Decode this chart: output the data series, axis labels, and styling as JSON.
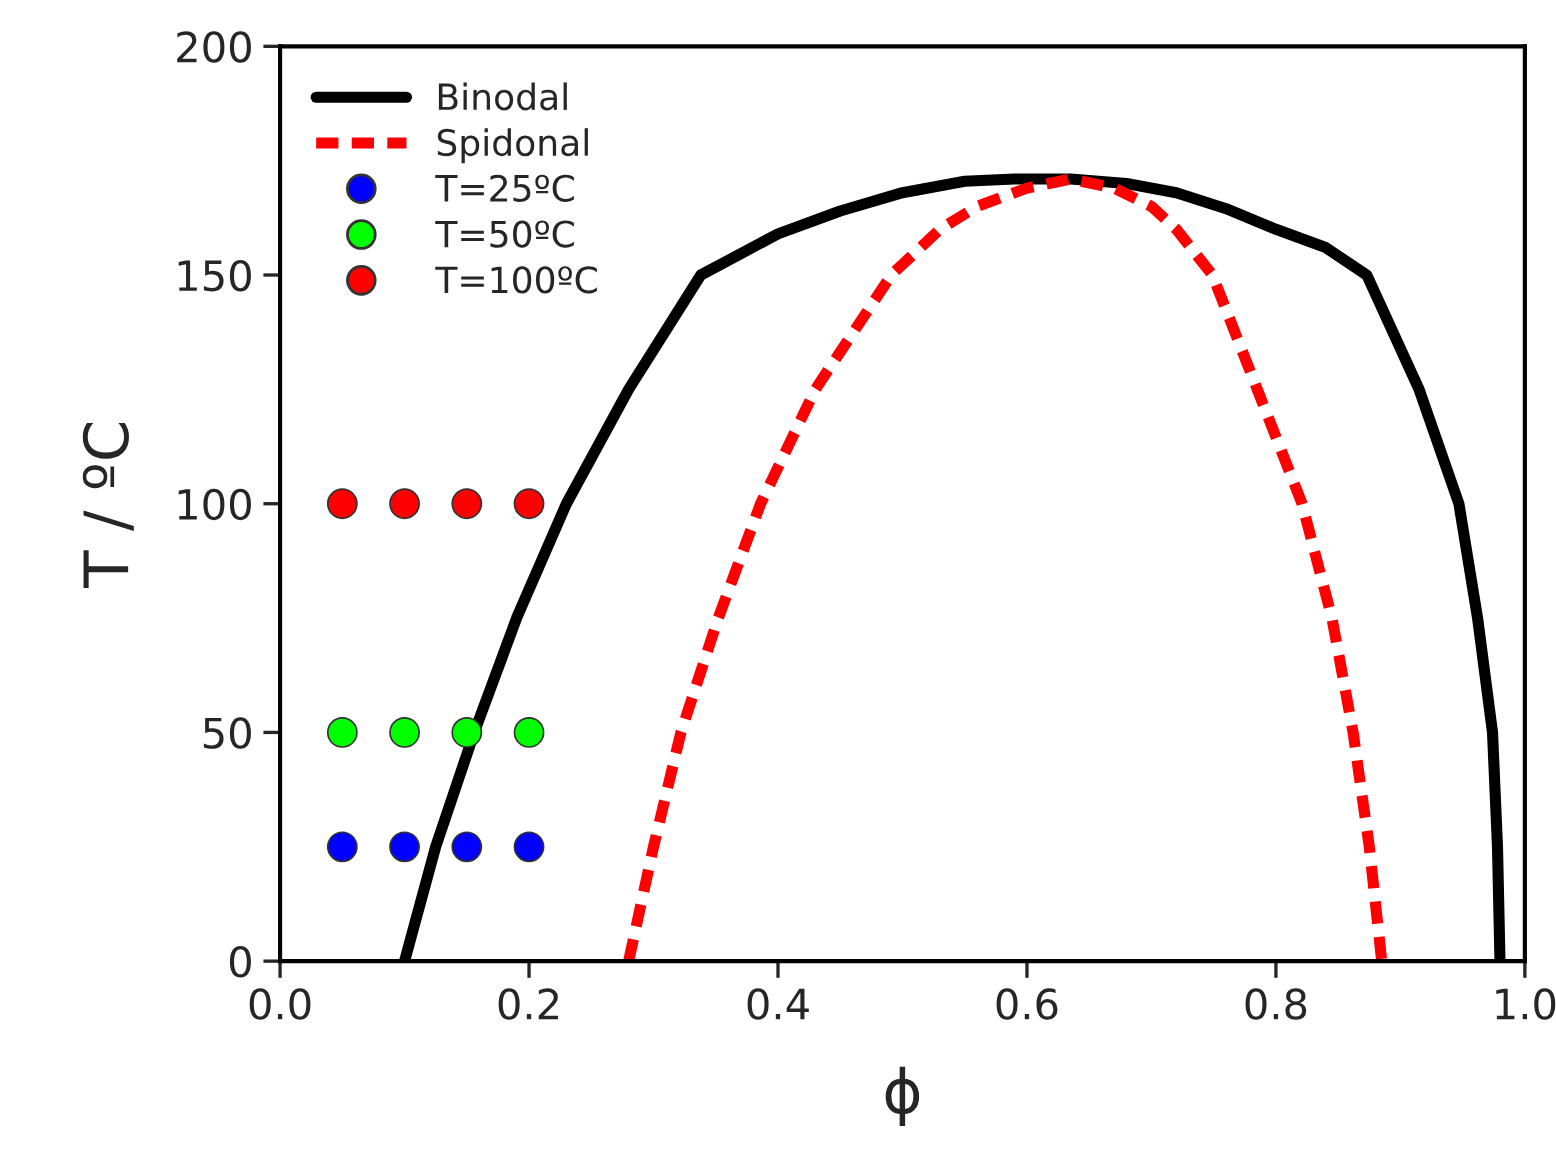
{
  "chart_data": {
    "type": "line",
    "xlabel": "ϕ",
    "ylabel": "T / ºC",
    "xlim": [
      0.0,
      1.0
    ],
    "xticks": [
      {
        "value": 0.0,
        "label": "0.0"
      },
      {
        "value": 0.2,
        "label": "0.2"
      },
      {
        "value": 0.4,
        "label": "0.4"
      },
      {
        "value": 0.6,
        "label": "0.6"
      },
      {
        "value": 0.8,
        "label": "0.8"
      },
      {
        "value": 1.0,
        "label": "1.0"
      }
    ],
    "ylim": [
      0,
      200
    ],
    "yticks": [
      0,
      50,
      100,
      150,
      200
    ],
    "grid": false,
    "legend": "top left",
    "series": [
      {
        "name": "Binodal",
        "color": "#000000",
        "line_style": "solid",
        "marker": "none",
        "x": [
          0.1,
          0.125,
          0.156,
          0.19,
          0.23,
          0.28,
          0.338,
          0.4,
          0.45,
          0.5,
          0.55,
          0.59,
          0.635,
          0.68,
          0.72,
          0.76,
          0.8,
          0.84,
          0.873,
          0.915,
          0.947,
          0.962,
          0.974,
          0.978,
          0.98
        ],
        "values": [
          0,
          25,
          50,
          75,
          100,
          125,
          150,
          159,
          164,
          168,
          170.5,
          171,
          171,
          170,
          168,
          164.5,
          160,
          156,
          150,
          125,
          100,
          75,
          50,
          25,
          0
        ]
      },
      {
        "name": "Spidonal",
        "color": "#ff0000",
        "line_style": "dashed",
        "marker": "none",
        "x": [
          0.28,
          0.3,
          0.322,
          0.352,
          0.386,
          0.43,
          0.491,
          0.53,
          0.56,
          0.6,
          0.635,
          0.67,
          0.7,
          0.72,
          0.749,
          0.785,
          0.821,
          0.845,
          0.862,
          0.875,
          0.885
        ],
        "values": [
          0,
          25,
          50,
          75,
          100,
          125,
          150,
          160,
          165,
          169,
          171,
          169,
          165,
          160,
          150,
          125,
          100,
          75,
          50,
          25,
          0
        ]
      },
      {
        "name": "T=25ºC",
        "type": "scatter",
        "color": "#0000ff",
        "marker": "circle",
        "x": [
          0.05,
          0.1,
          0.15,
          0.2
        ],
        "values": [
          25,
          25,
          25,
          25
        ]
      },
      {
        "name": "T=50ºC",
        "type": "scatter",
        "color": "#00ff00",
        "marker": "circle",
        "x": [
          0.05,
          0.1,
          0.15,
          0.2
        ],
        "values": [
          50,
          50,
          50,
          50
        ]
      },
      {
        "name": "T=100ºC",
        "type": "scatter",
        "color": "#ff0000",
        "marker": "circle",
        "x": [
          0.05,
          0.1,
          0.15,
          0.2
        ],
        "values": [
          100,
          100,
          100,
          100
        ]
      }
    ]
  }
}
